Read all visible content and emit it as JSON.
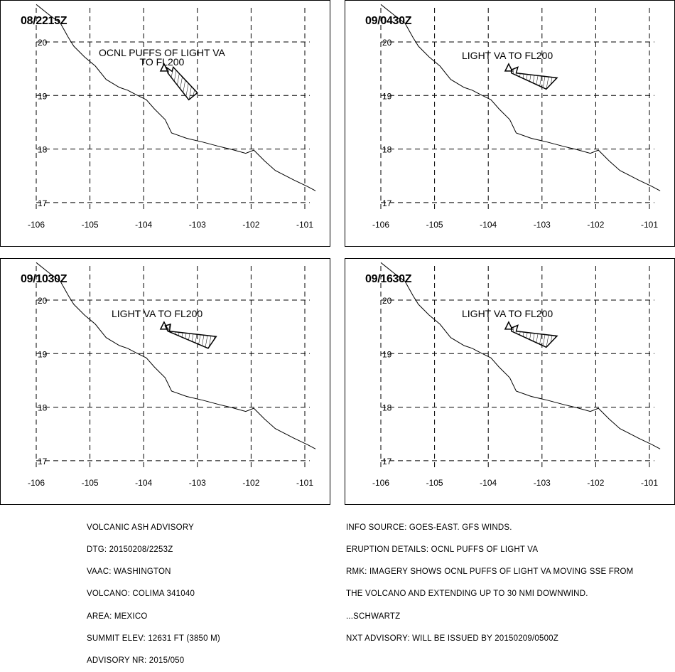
{
  "panels": [
    {
      "time": "08/2215Z",
      "label_lines": [
        "OCNL PUFFS OF LIGHT VA",
        "TO FL200"
      ],
      "plume": [
        [
          -103.57,
          19.52
        ],
        [
          -103.47,
          19.45
        ],
        [
          -103.45,
          19.53
        ],
        [
          -103.0,
          19.05
        ],
        [
          -103.16,
          18.92
        ],
        [
          -103.55,
          19.42
        ]
      ]
    },
    {
      "time": "09/0430Z",
      "label_lines": [
        "LIGHT VA  TO FL200"
      ],
      "plume": [
        [
          -103.57,
          19.48
        ],
        [
          -103.45,
          19.53
        ],
        [
          -103.48,
          19.42
        ],
        [
          -102.72,
          19.33
        ],
        [
          -102.92,
          19.12
        ],
        [
          -103.57,
          19.42
        ]
      ]
    },
    {
      "time": "09/1030Z",
      "label_lines": [
        "LIGHT VA  TO FL200"
      ],
      "plume": [
        [
          -103.6,
          19.52
        ],
        [
          -103.5,
          19.55
        ],
        [
          -103.52,
          19.42
        ],
        [
          -102.65,
          19.32
        ],
        [
          -102.8,
          19.1
        ],
        [
          -103.55,
          19.42
        ]
      ]
    },
    {
      "time": "09/1630Z",
      "label_lines": [
        "LIGHT VA  TO FL200"
      ],
      "plume": [
        [
          -103.57,
          19.48
        ],
        [
          -103.45,
          19.53
        ],
        [
          -103.48,
          19.42
        ],
        [
          -102.72,
          19.33
        ],
        [
          -102.92,
          19.12
        ],
        [
          -103.57,
          19.42
        ]
      ]
    }
  ],
  "volcano": {
    "name": "COLIMA",
    "lon": -103.62,
    "lat": 19.51
  },
  "axes": {
    "lon_ticks": [
      "-106",
      "-105",
      "-104",
      "-103",
      "-102",
      "-101"
    ],
    "lat_ticks": [
      "20",
      "19",
      "18",
      "17"
    ],
    "lon_range": [
      -106,
      -100.8
    ],
    "lat_range": [
      16.85,
      20.7
    ]
  },
  "coastline": [
    [
      -106,
      20.7
    ],
    [
      -105.75,
      20.5
    ],
    [
      -105.55,
      20.35
    ],
    [
      -105.4,
      20.08
    ],
    [
      -105.3,
      19.92
    ],
    [
      -105.1,
      19.72
    ],
    [
      -104.9,
      19.55
    ],
    [
      -104.7,
      19.3
    ],
    [
      -104.45,
      19.15
    ],
    [
      -104.3,
      19.1
    ],
    [
      -104.15,
      19.02
    ],
    [
      -103.95,
      18.92
    ],
    [
      -103.8,
      18.75
    ],
    [
      -103.6,
      18.55
    ],
    [
      -103.48,
      18.3
    ],
    [
      -103.2,
      18.2
    ],
    [
      -102.9,
      18.13
    ],
    [
      -102.6,
      18.05
    ],
    [
      -102.35,
      17.99
    ],
    [
      -102.1,
      17.92
    ],
    [
      -101.95,
      17.98
    ],
    [
      -101.75,
      17.78
    ],
    [
      -101.55,
      17.6
    ],
    [
      -101.2,
      17.42
    ],
    [
      -100.95,
      17.3
    ],
    [
      -100.8,
      17.22
    ]
  ],
  "footer": {
    "left": [
      "VOLCANIC ASH ADVISORY",
      "DTG: 20150208/2253Z",
      "VAAC: WASHINGTON",
      "VOLCANO: COLIMA 341040",
      "AREA: MEXICO",
      "SUMMIT ELEV: 12631 FT (3850 M)",
      "ADVISORY NR: 2015/050"
    ],
    "right": [
      "INFO SOURCE: GOES-EAST. GFS WINDS.",
      "ERUPTION DETAILS: OCNL PUFFS OF LIGHT VA",
      "RMK: IMAGERY SHOWS OCNL PUFFS OF LIGHT VA MOVING SSE FROM",
      "THE VOLCANO AND EXTENDING UP TO 30 NMI DOWNWIND.",
      "...SCHWARTZ",
      "NXT ADVISORY: WILL BE ISSUED BY 20150209/0500Z"
    ]
  },
  "colors": {
    "line": "#000000",
    "background": "#ffffff"
  }
}
